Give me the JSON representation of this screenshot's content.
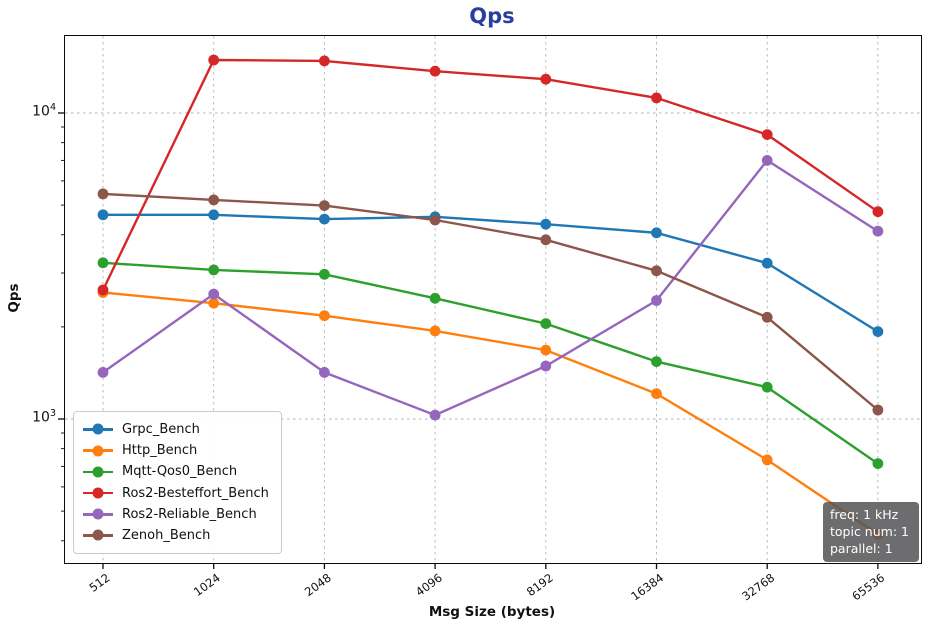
{
  "title": {
    "text": "Qps",
    "color": "#2a3f9d"
  },
  "xlabel": "Msg Size (bytes)",
  "ylabel": "Qps",
  "annotation": {
    "lines": [
      "freq: 1 kHz",
      "topic num: 1",
      "parallel: 1"
    ]
  },
  "chart_data": {
    "type": "line",
    "title": "Qps",
    "xlabel": "Msg Size (bytes)",
    "ylabel": "Qps",
    "x_scale": "log2",
    "y_scale": "log10",
    "grid": true,
    "legend_position": "lower left",
    "categories": [
      512,
      1024,
      2048,
      4096,
      8192,
      16384,
      32768,
      65536
    ],
    "yticks": [
      {
        "base": "10",
        "exp": "4",
        "value": 10000
      },
      {
        "base": "10",
        "exp": "3",
        "value": 1000
      }
    ],
    "ylim": [
      350,
      17800
    ],
    "series": [
      {
        "name": "Grpc_Bench",
        "color": "#1f77b4",
        "values": [
          4650,
          4650,
          4500,
          4580,
          4330,
          4060,
          3230,
          1930
        ]
      },
      {
        "name": "Http_Bench",
        "color": "#ff7f0e",
        "values": [
          2590,
          2390,
          2175,
          1940,
          1680,
          1210,
          735,
          420
        ]
      },
      {
        "name": "Mqtt-Qos0_Bench",
        "color": "#2ca02c",
        "values": [
          3240,
          3070,
          2970,
          2480,
          2050,
          1540,
          1270,
          715
        ]
      },
      {
        "name": "Ros2-Besteffort_Bench",
        "color": "#d62728",
        "values": [
          2640,
          14900,
          14800,
          13700,
          12900,
          11200,
          8500,
          4760
        ]
      },
      {
        "name": "Ros2-Reliable_Bench",
        "color": "#9467bd",
        "values": [
          1420,
          2560,
          1420,
          1030,
          1490,
          2440,
          7000,
          4110
        ]
      },
      {
        "name": "Zenoh_Bench",
        "color": "#8c564b",
        "values": [
          5440,
          5200,
          4980,
          4470,
          3850,
          3050,
          2150,
          1070
        ]
      }
    ]
  }
}
